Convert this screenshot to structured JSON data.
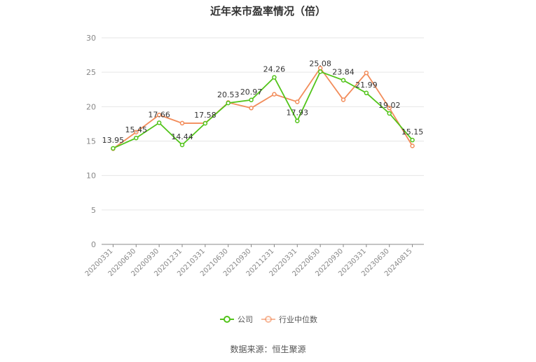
{
  "chart_data": {
    "type": "line",
    "title": "近年来市盈率情况（倍）",
    "categories": [
      "20200331",
      "20200630",
      "20200930",
      "20201231",
      "20210331",
      "20210630",
      "20210930",
      "20211231",
      "20220331",
      "20220630",
      "20220930",
      "20230331",
      "20230630",
      "20240815"
    ],
    "series": [
      {
        "name": "公司",
        "color": "#52c41a",
        "values": [
          13.95,
          15.45,
          17.66,
          14.44,
          17.58,
          20.53,
          20.97,
          24.26,
          17.93,
          25.08,
          23.84,
          21.99,
          19.02,
          15.15
        ],
        "labels": [
          "13.95",
          "15.45",
          "17.66",
          "14.44",
          "17.58",
          "20.53",
          "20.97",
          "24.26",
          "17.93",
          "25.08",
          "23.84",
          "21.99",
          "19.02",
          "15.15"
        ]
      },
      {
        "name": "行业中位数",
        "color": "#f28c5a",
        "values": [
          13.9,
          16.3,
          18.8,
          17.6,
          17.6,
          20.6,
          19.8,
          21.8,
          20.7,
          25.6,
          21.0,
          24.9,
          19.8,
          14.3
        ]
      }
    ],
    "ylim": [
      0,
      30
    ],
    "yticks": [
      0,
      5,
      10,
      15,
      20,
      25,
      30
    ],
    "grid": true,
    "legend_position": "bottom"
  },
  "source": "数据来源：恒生聚源"
}
